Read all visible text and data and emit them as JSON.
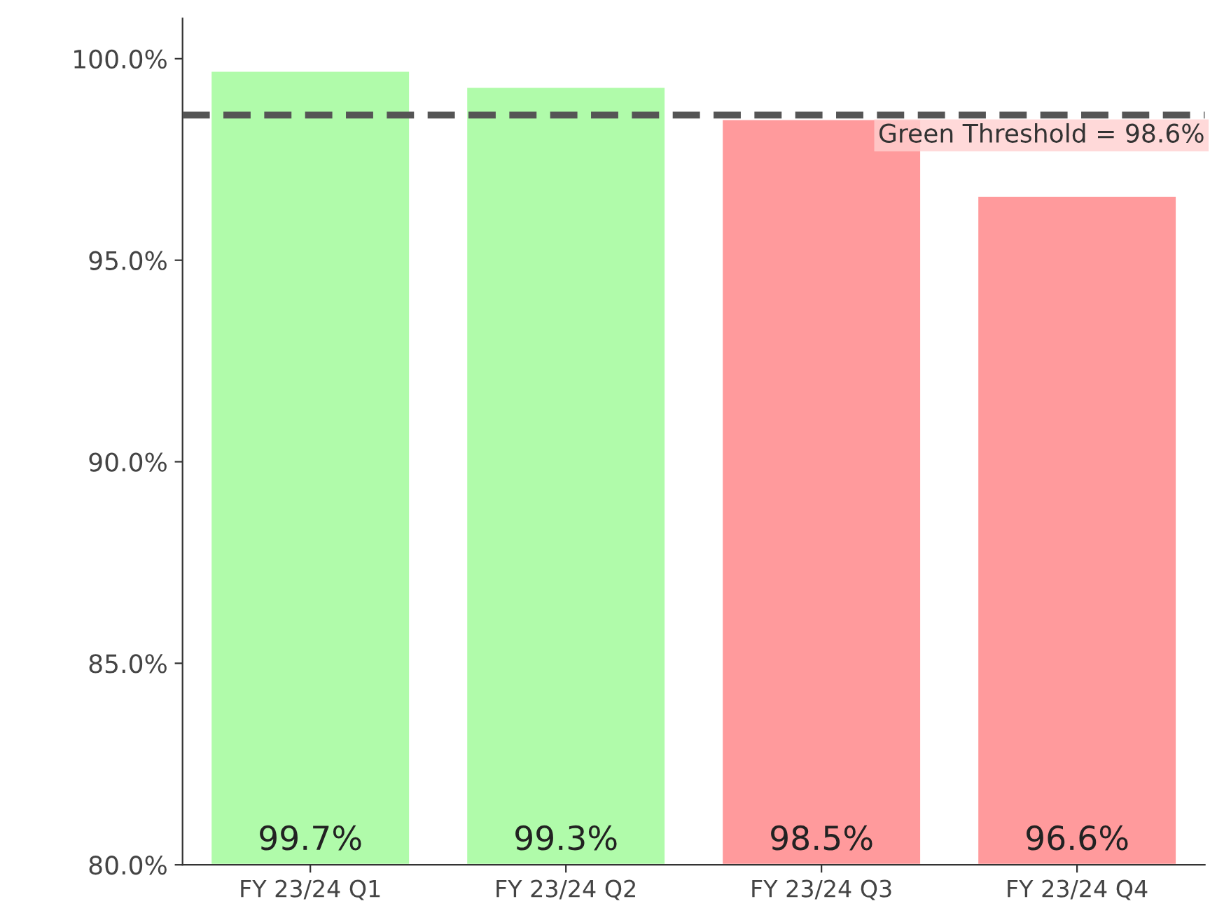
{
  "chart_data": {
    "type": "bar",
    "categories": [
      "FY 23/24 Q1",
      "FY 23/24 Q2",
      "FY 23/24 Q3",
      "FY 23/24 Q4"
    ],
    "values": [
      99.7,
      99.3,
      98.5,
      96.6
    ],
    "colors": [
      "#b0fbaa",
      "#b0fbaa",
      "#ff9a9c",
      "#ff9a9c"
    ],
    "value_labels": [
      "99.7%",
      "99.3%",
      "98.5%",
      "96.6%"
    ],
    "ylim": [
      80,
      101
    ],
    "yticks": [
      {
        "value": 80,
        "label": "80.0%"
      },
      {
        "value": 85,
        "label": "85.0%"
      },
      {
        "value": 90,
        "label": "90.0%"
      },
      {
        "value": 95,
        "label": "95.0%"
      },
      {
        "value": 100,
        "label": "100.0%"
      }
    ],
    "ref_lines": [
      {
        "axis": "y",
        "value": 98.6,
        "label": "Green Threshold = 98.6%",
        "color": "#555555",
        "line_style": "dashed"
      }
    ],
    "grid": false,
    "legend": false
  }
}
